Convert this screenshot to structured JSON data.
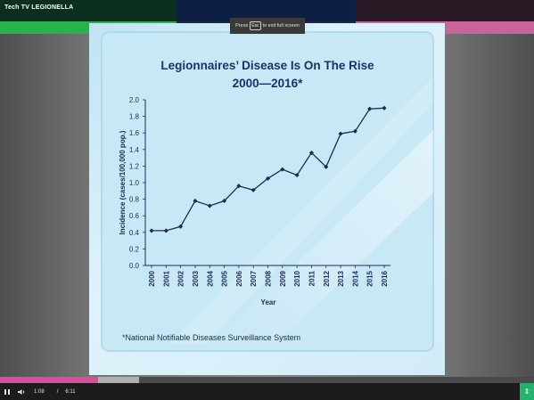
{
  "app": {
    "title": "Tech TV LEGIONELLA"
  },
  "toast": {
    "press": "Press",
    "key": "Esc",
    "suffix": "to exit full screen"
  },
  "colors": {
    "title": "#1f2f6b",
    "line": "#1f2a55",
    "axis": "#1f2a55",
    "progress": "#d94f9c",
    "fullscreen_button": "#24b36f"
  },
  "chart_data": {
    "type": "line",
    "title": "Legionnaires’ Disease Is On The Rise",
    "subtitle": "2000—2016*",
    "xlabel": "Year",
    "ylabel": "Incidence (cases/100,000 pop.)",
    "x": [
      "2000",
      "2001",
      "2002",
      "2003",
      "2004",
      "2005",
      "2006",
      "2007",
      "2008",
      "2009",
      "2010",
      "2011",
      "2012",
      "2013",
      "2014",
      "2015",
      "2016"
    ],
    "series": [
      {
        "values": [
          0.42,
          0.42,
          0.47,
          0.78,
          0.72,
          0.78,
          0.96,
          0.91,
          1.05,
          1.16,
          1.09,
          1.36,
          1.19,
          1.59,
          1.62,
          1.89,
          1.9
        ]
      }
    ],
    "yticks": [
      "0.0",
      "0.2",
      "0.4",
      "0.6",
      "0.8",
      "1.0",
      "1.2",
      "1.4",
      "1.6",
      "1.8",
      "2.0"
    ],
    "ylim": [
      0,
      2.0
    ],
    "grid": false,
    "legend": "none",
    "footnote": "*National Notifiable Diseases Surveillance System"
  },
  "player": {
    "play_icon": "pause-icon",
    "volume_icon": "volume-icon",
    "current_time": "1:08",
    "separator": "/",
    "duration": "6:11",
    "fullscreen_icon": "fullscreen-toggle-icon",
    "progress": 0.183
  }
}
